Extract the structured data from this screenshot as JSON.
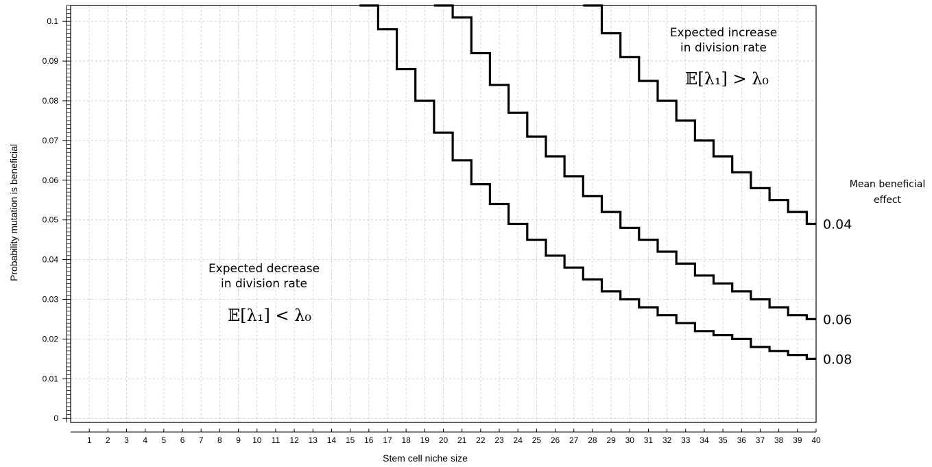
{
  "chart_data": {
    "type": "line",
    "step": true,
    "xlabel": "Stem cell niche size",
    "ylabel": "Probability mutation is beneficial",
    "xlim": [
      0,
      40
    ],
    "ylim": [
      -0.001,
      0.104
    ],
    "x_ticks": [
      1,
      2,
      3,
      4,
      5,
      6,
      7,
      8,
      9,
      10,
      11,
      12,
      13,
      14,
      15,
      16,
      17,
      18,
      19,
      20,
      21,
      22,
      23,
      24,
      25,
      26,
      27,
      28,
      29,
      30,
      31,
      32,
      33,
      34,
      35,
      36,
      37,
      38,
      39,
      40
    ],
    "y_ticks": [
      "0",
      "0.01",
      "0.02",
      "0.03",
      "0.04",
      "0.05",
      "0.06",
      "0.07",
      "0.08",
      "0.09",
      "0.1"
    ],
    "grid": true,
    "series": [
      {
        "name": "0.04",
        "x": [
          28,
          29,
          30,
          31,
          32,
          33,
          34,
          35,
          36,
          37,
          38,
          39,
          40
        ],
        "values": [
          0.104,
          0.097,
          0.091,
          0.085,
          0.08,
          0.075,
          0.07,
          0.066,
          0.062,
          0.058,
          0.055,
          0.052,
          0.049
        ]
      },
      {
        "name": "0.06",
        "x": [
          20,
          21,
          22,
          23,
          24,
          25,
          26,
          27,
          28,
          29,
          30,
          31,
          32,
          33,
          34,
          35,
          36,
          37,
          38,
          39,
          40
        ],
        "values": [
          0.104,
          0.101,
          0.092,
          0.084,
          0.077,
          0.071,
          0.066,
          0.061,
          0.056,
          0.052,
          0.048,
          0.045,
          0.042,
          0.039,
          0.036,
          0.034,
          0.032,
          0.03,
          0.028,
          0.026,
          0.025
        ]
      },
      {
        "name": "0.08",
        "x": [
          16,
          17,
          18,
          19,
          20,
          21,
          22,
          23,
          24,
          25,
          26,
          27,
          28,
          29,
          30,
          31,
          32,
          33,
          34,
          35,
          36,
          37,
          38,
          39,
          40
        ],
        "values": [
          0.104,
          0.098,
          0.088,
          0.08,
          0.072,
          0.065,
          0.059,
          0.054,
          0.049,
          0.045,
          0.041,
          0.038,
          0.035,
          0.032,
          0.03,
          0.028,
          0.026,
          0.024,
          0.022,
          0.021,
          0.02,
          0.018,
          0.017,
          0.016,
          0.015
        ]
      }
    ],
    "legend_title": "Mean beneficial effect",
    "annotations": {
      "increase_line1": "Expected increase",
      "increase_line2": "in division rate",
      "increase_math": "𝔼[λ₁] > λ₀",
      "decrease_line1": "Expected decrease",
      "decrease_line2": "in division rate",
      "decrease_math": "𝔼[λ₁] < λ₀"
    }
  },
  "legend": {
    "title_line1": "Mean beneficial",
    "title_line2": "effect"
  }
}
